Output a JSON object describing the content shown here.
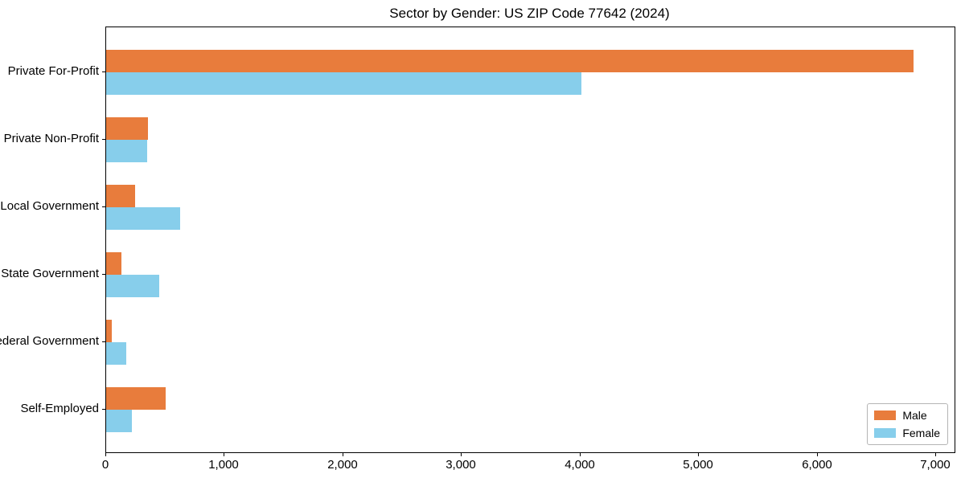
{
  "title": "Sector by Gender: US ZIP Code 77642 (2024)",
  "chart_data": {
    "type": "bar",
    "orientation": "horizontal",
    "title": "Sector by Gender: US ZIP Code 77642 (2024)",
    "xlabel": "",
    "ylabel": "",
    "categories": [
      "Private For-Profit",
      "Private Non-Profit",
      "Local Government",
      "State Government",
      "Federal Government",
      "Self-Employed"
    ],
    "series": [
      {
        "name": "Male",
        "color": "#e87c3c",
        "values": [
          6810,
          355,
          245,
          130,
          45,
          505
        ]
      },
      {
        "name": "Female",
        "color": "#87ceeb",
        "values": [
          4005,
          345,
          625,
          450,
          170,
          220
        ]
      }
    ],
    "xlim": [
      0,
      7155
    ],
    "x_ticks": [
      0,
      1000,
      2000,
      3000,
      4000,
      5000,
      6000,
      7000
    ],
    "x_tick_labels": [
      "0",
      "1,000",
      "2,000",
      "3,000",
      "4,000",
      "5,000",
      "6,000",
      "7,000"
    ],
    "grid": false,
    "legend_position": "lower right",
    "background_color": "#ffffff",
    "spine_color": "#000000"
  }
}
